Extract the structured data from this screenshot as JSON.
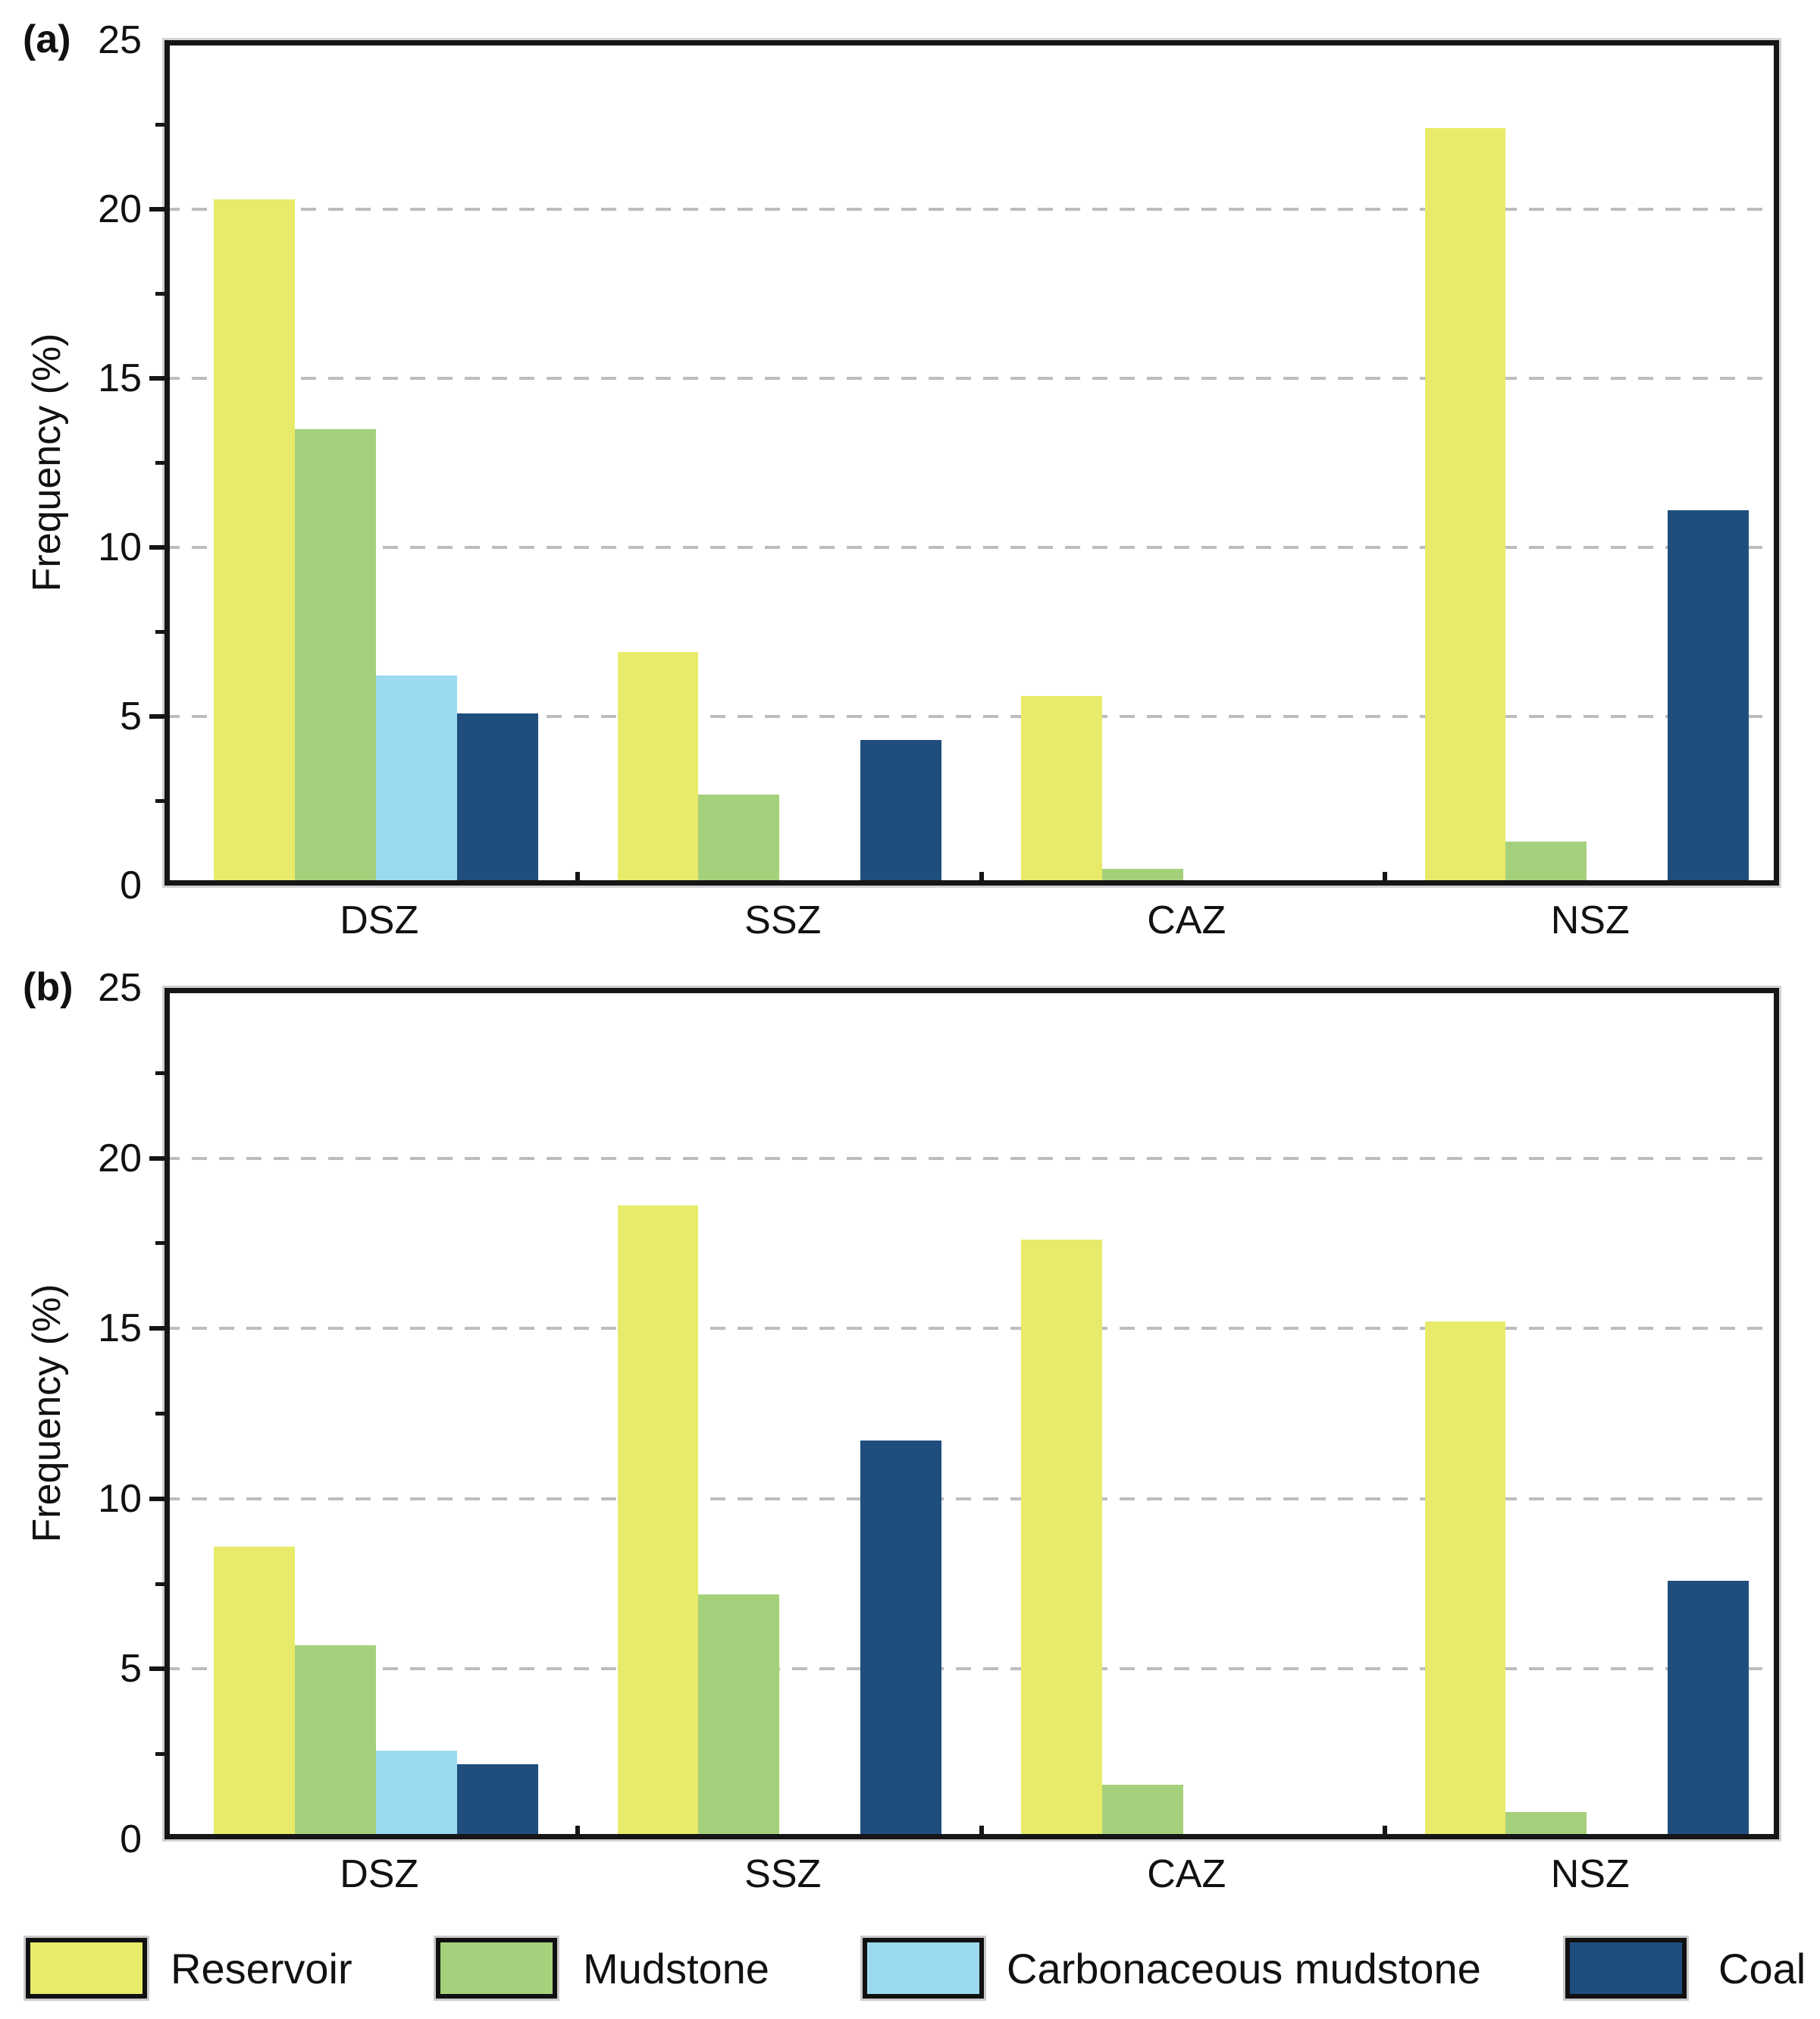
{
  "figure": {
    "panels": [
      {
        "label": "(a)",
        "ylabel": "Frequency (%)"
      },
      {
        "label": "(b)",
        "ylabel": "Frequency (%)"
      }
    ]
  },
  "legend": {
    "items": [
      {
        "label": "Reservoir",
        "color": "#e7eb69"
      },
      {
        "label": "Mudstone",
        "color": "#a6d17c"
      },
      {
        "label": "Carbonaceous mudstone",
        "color": "#9cdaf0"
      },
      {
        "label": "Coal",
        "color": "#1f4e7e"
      }
    ]
  },
  "chart_data": [
    {
      "type": "bar",
      "panel_label": "(a)",
      "title": "",
      "xlabel": "",
      "ylabel": "Frequency (%)",
      "ylim": [
        0,
        25
      ],
      "yticks": [
        0,
        5,
        10,
        15,
        20,
        25
      ],
      "minor_yticks": [
        2.5,
        7.5,
        12.5,
        17.5,
        22.5
      ],
      "grid": "horizontal dashed at 5,10,15,20",
      "legend_position": "bottom",
      "categories": [
        "DSZ",
        "SSZ",
        "CAZ",
        "NSZ"
      ],
      "series": [
        {
          "name": "Reservoir",
          "color": "#e7eb69",
          "values": [
            20.3,
            6.9,
            5.6,
            22.4
          ]
        },
        {
          "name": "Mudstone",
          "color": "#a6d17c",
          "values": [
            13.5,
            2.7,
            0.5,
            1.3
          ]
        },
        {
          "name": "Carbonaceous mudstone",
          "color": "#9cdaf0",
          "values": [
            6.2,
            0,
            0,
            0.1
          ]
        },
        {
          "name": "Coal",
          "color": "#1f4e7e",
          "values": [
            5.1,
            4.3,
            0,
            11.1
          ]
        }
      ]
    },
    {
      "type": "bar",
      "panel_label": "(b)",
      "title": "",
      "xlabel": "",
      "ylabel": "Frequency (%)",
      "ylim": [
        0,
        25
      ],
      "yticks": [
        0,
        5,
        10,
        15,
        20,
        25
      ],
      "minor_yticks": [
        2.5,
        7.5,
        12.5,
        17.5,
        22.5
      ],
      "grid": "horizontal dashed at 5,10,15,20",
      "legend_position": "bottom",
      "categories": [
        "DSZ",
        "SSZ",
        "CAZ",
        "NSZ"
      ],
      "series": [
        {
          "name": "Reservoir",
          "color": "#e7eb69",
          "values": [
            8.6,
            18.6,
            17.6,
            15.2
          ]
        },
        {
          "name": "Mudstone",
          "color": "#a6d17c",
          "values": [
            5.7,
            7.2,
            1.6,
            0.8
          ]
        },
        {
          "name": "Carbonaceous mudstone",
          "color": "#9cdaf0",
          "values": [
            2.6,
            0.1,
            0.1,
            0.1
          ]
        },
        {
          "name": "Coal",
          "color": "#1f4e7e",
          "values": [
            2.2,
            11.7,
            0,
            7.6
          ]
        }
      ]
    }
  ]
}
